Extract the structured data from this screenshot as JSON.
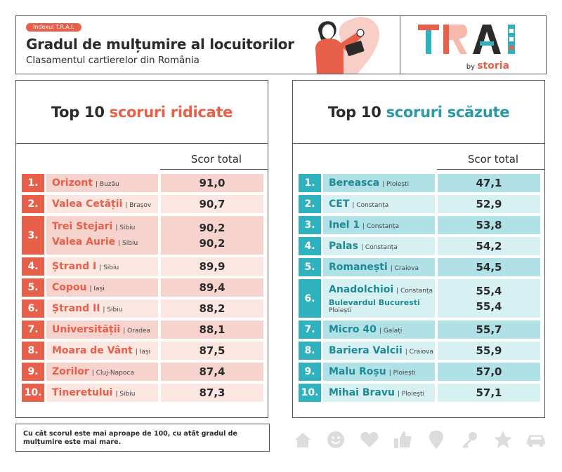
{
  "header": {
    "badge": "Indexul T.R.A.I.",
    "title": "Gradul de mulțumire al locuitorilor",
    "subtitle": "Clasamentul cartierelor din România",
    "logo_by": "by",
    "logo_brand": "storia"
  },
  "left_panel": {
    "title_prefix": "Top 10 ",
    "title_accent": "scoruri ridicate",
    "score_header": "Scor total",
    "rows": [
      {
        "rank": "1.",
        "entries": [
          {
            "name": "Orizont",
            "city": "| Buzău",
            "score": "91,0"
          }
        ]
      },
      {
        "rank": "2.",
        "entries": [
          {
            "name": "Valea Cetății",
            "city": "| Brașov",
            "score": "90,7"
          }
        ]
      },
      {
        "rank": "3.",
        "entries": [
          {
            "name": "Trei Stejari",
            "city": "| Sibiu",
            "score": "90,2"
          },
          {
            "name": "Valea Aurie",
            "city": "| Sibiu",
            "score": "90,2"
          }
        ]
      },
      {
        "rank": "4.",
        "entries": [
          {
            "name": "Ștrand I",
            "city": "| Sibiu",
            "score": "89,9"
          }
        ]
      },
      {
        "rank": "5.",
        "entries": [
          {
            "name": "Copou",
            "city": "| Iași",
            "score": "89,4"
          }
        ]
      },
      {
        "rank": "6.",
        "entries": [
          {
            "name": "Ștrand II",
            "city": "| Sibiu",
            "score": "88,2"
          }
        ]
      },
      {
        "rank": "7.",
        "entries": [
          {
            "name": "Universității",
            "city": "| Oradea",
            "score": "88,1"
          }
        ]
      },
      {
        "rank": "8.",
        "entries": [
          {
            "name": "Moara de Vânt",
            "city": "| Iași",
            "score": "87,5"
          }
        ]
      },
      {
        "rank": "9.",
        "entries": [
          {
            "name": "Zorilor",
            "city": "| Cluj-Napoca",
            "score": "87,4"
          }
        ]
      },
      {
        "rank": "10.",
        "entries": [
          {
            "name": "Tineretului",
            "city": "| Sibiu",
            "score": "87,3"
          }
        ]
      }
    ]
  },
  "right_panel": {
    "title_prefix": "Top 10 ",
    "title_accent": "scoruri scăzute",
    "score_header": "Scor total",
    "rows": [
      {
        "rank": "1.",
        "entries": [
          {
            "name": "Bereasca",
            "city": "| Ploiești",
            "score": "47,1"
          }
        ]
      },
      {
        "rank": "2.",
        "entries": [
          {
            "name": "CET",
            "city": "| Constanța",
            "score": "52,9"
          }
        ]
      },
      {
        "rank": "3.",
        "entries": [
          {
            "name": "Inel 1",
            "city": "| Constanța",
            "score": "53,8"
          }
        ]
      },
      {
        "rank": "4.",
        "entries": [
          {
            "name": "Palas",
            "city": "| Constanța",
            "score": "54,2"
          }
        ]
      },
      {
        "rank": "5.",
        "entries": [
          {
            "name": "Romanești",
            "city": "| Craiova",
            "score": "54,5"
          }
        ]
      },
      {
        "rank": "6.",
        "entries": [
          {
            "name": "Anadolchioi",
            "city": "| Constanța",
            "score": "55,4"
          },
          {
            "name": "Bulevardul Bucuresti",
            "city": "Ploiești",
            "score": "55,4"
          }
        ]
      },
      {
        "rank": "7.",
        "entries": [
          {
            "name": "Micro 40",
            "city": "| Galați",
            "score": "55,7"
          }
        ]
      },
      {
        "rank": "8.",
        "entries": [
          {
            "name": "Bariera Valcii",
            "city": "| Craiova",
            "score": "55,9"
          }
        ]
      },
      {
        "rank": "9.",
        "entries": [
          {
            "name": "Malu Roșu",
            "city": "| Ploiești",
            "score": "57,0"
          }
        ]
      },
      {
        "rank": "10.",
        "entries": [
          {
            "name": "Mihai Bravu",
            "city": "| Ploiești",
            "score": "57,1"
          }
        ]
      }
    ]
  },
  "footnote": "Cu cât scorul este mai aproape de 100, cu atât gradul de mulțumire este mai mare.",
  "colors": {
    "accent_red": "#e8604a",
    "accent_teal": "#2fb1be"
  },
  "icons": [
    "house-icon",
    "smile-icon",
    "heart-icon",
    "thumbs-up-icon",
    "location-pin-icon",
    "key-icon",
    "star-icon",
    "car-icon"
  ]
}
